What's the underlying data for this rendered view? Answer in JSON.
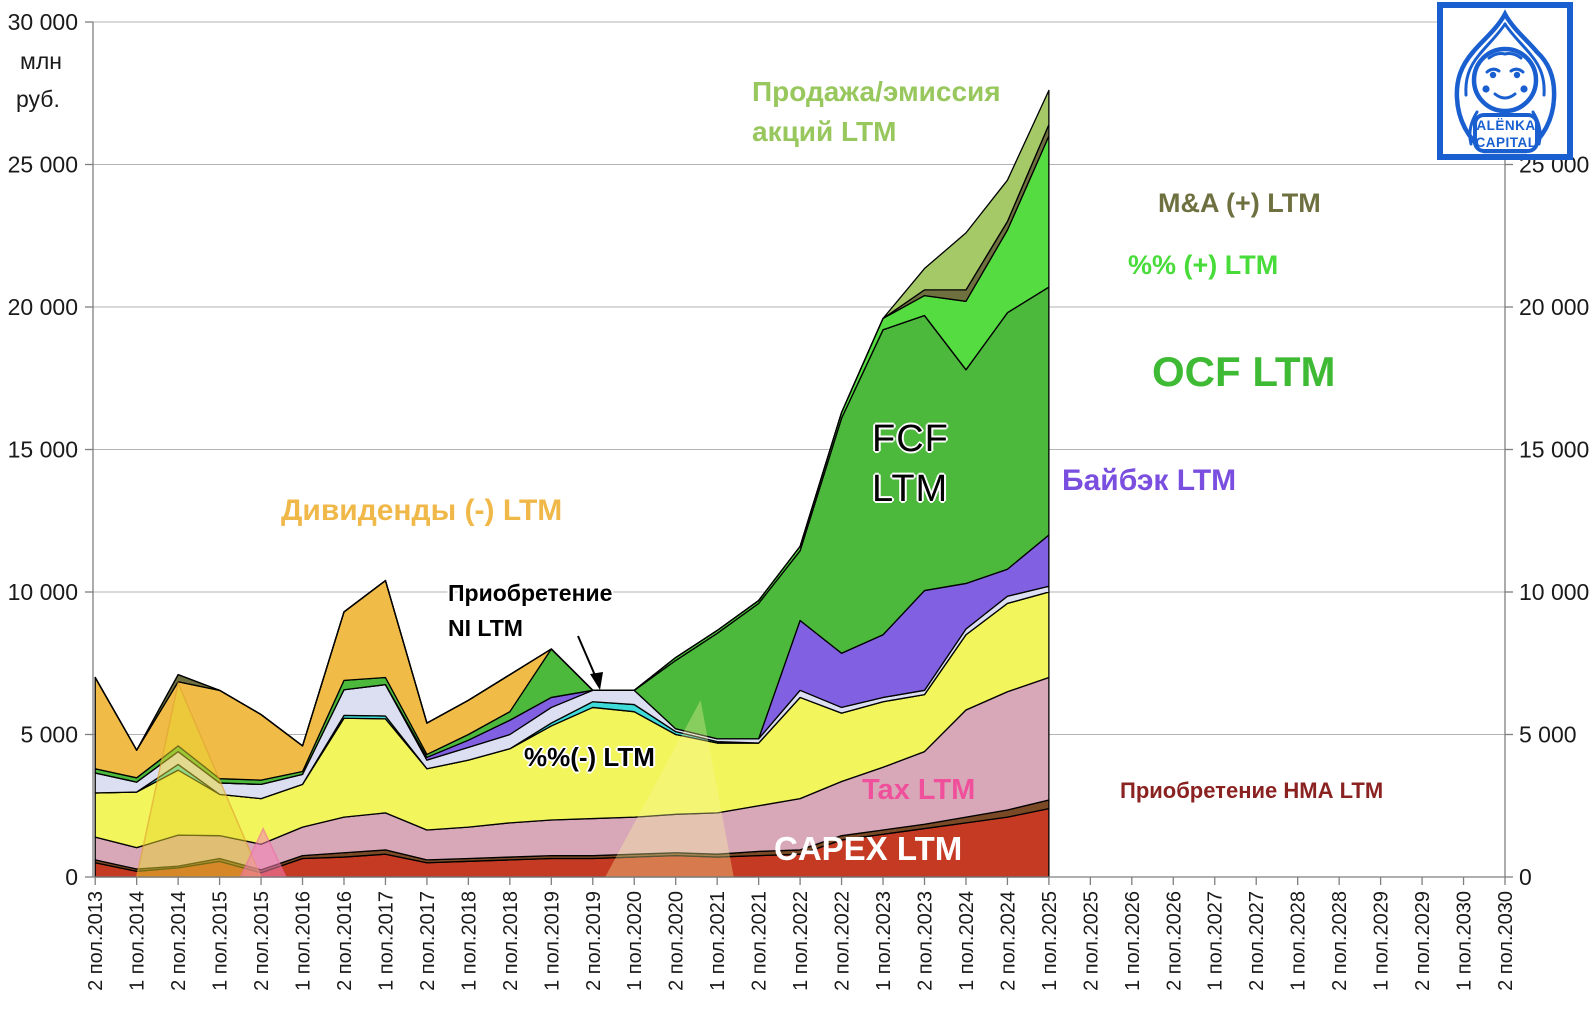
{
  "logo": {
    "line1": "ALЁNKA",
    "line2": "CAPITAL",
    "color": "#1A5FD0"
  },
  "y_axis": {
    "unit_line1": "млн",
    "unit_line2": "руб.",
    "left_ticks": [
      "30 000",
      "25 000",
      "20 000",
      "15 000",
      "10 000",
      "5 000",
      "0"
    ],
    "right_ticks": [
      "25 000",
      "20 000",
      "15 000",
      "10 000",
      "5 000",
      "0"
    ]
  },
  "labels": {
    "sale_line1": "Продажа/эмиссия",
    "sale_line2": "акций LTM",
    "ma": "M&A (+) LTM",
    "pct_plus": "%% (+) LTM",
    "ocf": "OCF LTM",
    "buyback": "Байбэк LTM",
    "dividends": "Дивиденды  (-) LTM",
    "ni_line1": "Приобретение",
    "ni_line2": "NI LTM",
    "fcf_line1": "FCF",
    "fcf_line2": "LTM",
    "pct_minus": "%%(-) LTM",
    "tax": "Tax LTM",
    "capex": "CAPEX LTM",
    "nma": "Приобретение НМА LTM"
  },
  "chart_data": {
    "type": "area",
    "stacked": true,
    "unit": "млн руб.",
    "ylim": [
      0,
      30000
    ],
    "grid_step": 5000,
    "grid": true,
    "x_categories": [
      "2 пол.2013",
      "1 пол.2014",
      "2 пол.2014",
      "1 пол.2015",
      "2 пол.2015",
      "1 пол.2016",
      "2 пол.2016",
      "1 пол.2017",
      "2 пол.2017",
      "1 пол.2018",
      "2 пол.2018",
      "1 пол.2019",
      "2 пол.2019",
      "1 пол.2020",
      "2 пол.2020",
      "1 пол.2021",
      "2 пол.2021",
      "1 пол.2022",
      "2 пол.2022",
      "1 пол.2023",
      "2 пол.2023",
      "1 пол.2024",
      "2 пол.2024",
      "1 пол.2025",
      "2 пол.2025",
      "1 пол.2026",
      "2 пол.2026",
      "1 пол.2027",
      "2 пол.2027",
      "1 пол.2028",
      "2 пол.2028",
      "1 пол.2029",
      "2 пол.2029",
      "1 пол.2030",
      "2 пол.2030"
    ],
    "data_end_category": "1 пол.2025",
    "series": [
      {
        "id": "capex",
        "label": "CAPEX LTM",
        "color": "#C53A23",
        "values": [
          500,
          200,
          320,
          550,
          150,
          650,
          700,
          800,
          500,
          550,
          600,
          650,
          650,
          700,
          750,
          700,
          750,
          800,
          1300,
          1500,
          1700,
          1900,
          2100,
          2400
        ]
      },
      {
        "id": "nma",
        "label": "Приобретение НМА LTM",
        "color": "#7A4A26",
        "values": [
          100,
          80,
          60,
          100,
          100,
          100,
          150,
          150,
          100,
          100,
          100,
          100,
          100,
          100,
          100,
          100,
          150,
          150,
          150,
          150,
          150,
          200,
          250,
          300
        ]
      },
      {
        "id": "tax",
        "label": "Tax LTM",
        "color": "#D9A8B8",
        "values": [
          800,
          750,
          1090,
          800,
          900,
          1000,
          1250,
          1300,
          1050,
          1100,
          1200,
          1250,
          1300,
          1300,
          1350,
          1450,
          1600,
          1800,
          1900,
          2200,
          2550,
          3760,
          4150,
          4300
        ]
      },
      {
        "id": "pct_minus",
        "label": "%%(-) LTM",
        "color": "#F2F55B",
        "values": [
          1550,
          1950,
          2280,
          1450,
          1600,
          1500,
          3470,
          3300,
          2150,
          2350,
          2600,
          3300,
          3900,
          3700,
          2800,
          2450,
          2200,
          3550,
          2400,
          2300,
          2000,
          2640,
          3100,
          3000
        ]
      },
      {
        "id": "cyan_band",
        "label": "",
        "color": "#3EDBD8",
        "values": [
          0,
          0,
          200,
          0,
          0,
          0,
          100,
          100,
          0,
          0,
          0,
          100,
          200,
          250,
          100,
          50,
          0,
          0,
          0,
          0,
          0,
          0,
          0,
          0
        ]
      },
      {
        "id": "ni",
        "label": "Приобретение NI LTM",
        "color": "#DBDFF1",
        "values": [
          700,
          350,
          450,
          400,
          500,
          350,
          900,
          1100,
          300,
          450,
          500,
          550,
          400,
          500,
          100,
          100,
          150,
          250,
          200,
          150,
          150,
          200,
          250,
          200
        ]
      },
      {
        "id": "buyback",
        "label": "Байбэк LTM",
        "color": "#8161E2",
        "values": [
          0,
          0,
          0,
          0,
          0,
          0,
          0,
          0,
          100,
          250,
          500,
          350,
          0,
          0,
          0,
          0,
          0,
          2450,
          1900,
          2200,
          3500,
          1600,
          950,
          1800
        ]
      },
      {
        "id": "fcf",
        "label": "FCF LTM",
        "color": "#4CB83C",
        "values": [
          150,
          150,
          200,
          150,
          150,
          100,
          330,
          250,
          100,
          200,
          300,
          1700,
          0,
          0,
          2400,
          3700,
          4750,
          2450,
          8250,
          10700,
          9650,
          7500,
          9000,
          8700
        ]
      },
      {
        "id": "dividends",
        "label": "Дивиденды (-) LTM",
        "color": "#F0BC47",
        "values": [
          3200,
          970,
          2250,
          3100,
          2300,
          900,
          2400,
          3400,
          1100,
          1200,
          1300,
          0,
          0,
          0,
          0,
          0,
          0,
          0,
          0,
          0,
          0,
          0,
          0,
          0
        ]
      },
      {
        "id": "pct_plus",
        "label": "%% (+) LTM",
        "color": "#55DC41",
        "values": [
          0,
          0,
          0,
          0,
          0,
          0,
          0,
          0,
          0,
          0,
          0,
          0,
          0,
          0,
          100,
          100,
          100,
          150,
          200,
          400,
          700,
          2400,
          2900,
          5300
        ]
      },
      {
        "id": "ma",
        "label": "M&A (+) LTM",
        "color": "#6E7040",
        "values": [
          0,
          0,
          250,
          0,
          0,
          0,
          0,
          0,
          0,
          0,
          0,
          0,
          0,
          0,
          0,
          0,
          0,
          0,
          0,
          0,
          200,
          400,
          300,
          400
        ]
      },
      {
        "id": "sale",
        "label": "Продажа/эмиссия акций LTM",
        "color": "#A5C966",
        "values": [
          0,
          0,
          0,
          0,
          0,
          0,
          0,
          0,
          0,
          0,
          0,
          0,
          0,
          0,
          0,
          0,
          0,
          0,
          0,
          0,
          750,
          2000,
          1450,
          1200
        ]
      }
    ],
    "ghost_overlays": [
      {
        "id": "ghost-yellow",
        "fill": "rgba(232,213,48,0.50)",
        "stroke": "rgba(225,160,50,0.6)",
        "points": [
          [
            1,
            0
          ],
          [
            2,
            6800
          ],
          [
            4,
            0
          ]
        ]
      },
      {
        "id": "ghost-pink",
        "fill": "rgba(244,128,183,0.55)",
        "stroke": "rgba(240,100,160,0.5)",
        "points": [
          [
            3.5,
            0
          ],
          [
            4.05,
            1700
          ],
          [
            4.6,
            0
          ]
        ]
      },
      {
        "id": "ghost-yellow-2",
        "fill": "rgba(250,246,160,0.35)",
        "stroke": "none",
        "points": [
          [
            12.3,
            0
          ],
          [
            14.6,
            6200
          ],
          [
            15.4,
            0
          ]
        ]
      }
    ],
    "annotations_on_chart": [
      "Продажа/эмиссия акций LTM",
      "M&A (+) LTM",
      "%% (+) LTM",
      "OCF LTM",
      "Байбэк LTM",
      "Дивиденды  (-) LTM",
      "Приобретение NI LTM",
      "FCF LTM",
      "%%(-) LTM",
      "Tax LTM",
      "CAPEX LTM",
      "Приобретение НМА LTM"
    ]
  }
}
